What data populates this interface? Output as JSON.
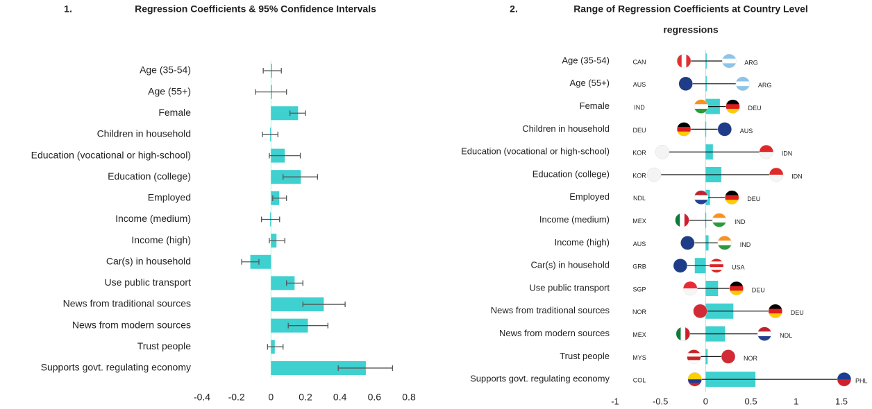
{
  "chart_data": [
    {
      "type": "bar",
      "number": "1.",
      "title": "Regression Coefficients & 95% Confidence Intervals",
      "color": "#3fd0d0",
      "error_color": "#555555",
      "categories": [
        "Age (35-54)",
        "Age (55+)",
        "Female",
        "Children in household",
        "Education (vocational or high-school)",
        "Education (college)",
        "Employed",
        "Income (medium)",
        "Income (high)",
        "Car(s) in household",
        "Use public transport",
        "News from traditional sources",
        "News from modern sources",
        "Trust people",
        "Supports govt. regulating economy"
      ],
      "values": [
        0.005,
        0.0,
        0.157,
        -0.005,
        0.08,
        0.173,
        0.048,
        -0.005,
        0.032,
        -0.12,
        0.137,
        0.306,
        0.214,
        0.022,
        0.55
      ],
      "ci_low": [
        -0.045,
        -0.09,
        0.11,
        -0.05,
        -0.01,
        0.07,
        0.01,
        -0.055,
        -0.01,
        -0.17,
        0.09,
        0.185,
        0.1,
        -0.02,
        0.39
      ],
      "ci_high": [
        0.06,
        0.09,
        0.2,
        0.04,
        0.17,
        0.27,
        0.09,
        0.05,
        0.08,
        -0.07,
        0.185,
        0.43,
        0.33,
        0.07,
        0.705
      ],
      "xlim": [
        -0.4,
        0.8
      ],
      "xticks": [
        -0.4,
        -0.2,
        0,
        0.2,
        0.4,
        0.6,
        0.8
      ]
    },
    {
      "type": "range",
      "number": "2.",
      "title_lines": [
        "Range of Regression Coefficients at Country Level",
        "regressions"
      ],
      "color": "#3fd0d0",
      "categories": [
        "Age (35-54)",
        "Age (55+)",
        "Female",
        "Children in household",
        "Education (vocational or high-school)",
        "Education (college)",
        "Employed",
        "Income (medium)",
        "Income (high)",
        "Car(s) in household",
        "Use public transport",
        "News from traditional sources",
        "News from modern sources",
        "Trust people",
        "Supports govt. regulating economy"
      ],
      "values": [
        0.005,
        0.0,
        0.157,
        -0.005,
        0.08,
        0.173,
        0.048,
        -0.005,
        0.032,
        -0.12,
        0.137,
        0.306,
        0.214,
        0.022,
        0.55
      ],
      "min_country": [
        "CAN",
        "AUS",
        "IND",
        "DEU",
        "KOR",
        "KOR",
        "NDL",
        "MEX",
        "AUS",
        "GRB",
        "SGP",
        "NOR",
        "MEX",
        "MYS",
        "COL"
      ],
      "min_values": [
        -0.24,
        -0.22,
        -0.05,
        -0.24,
        -0.48,
        -0.57,
        -0.05,
        -0.26,
        -0.2,
        -0.28,
        -0.17,
        -0.06,
        -0.25,
        -0.13,
        -0.12
      ],
      "max_country": [
        "ARG",
        "ARG",
        "DEU",
        "AUS",
        "IDN",
        "IDN",
        "DEU",
        "IND",
        "IND",
        "USA",
        "DEU",
        "DEU",
        "NDL",
        "NOR",
        "PHL"
      ],
      "max_values": [
        0.26,
        0.41,
        0.3,
        0.21,
        0.67,
        0.78,
        0.29,
        0.15,
        0.21,
        0.12,
        0.34,
        0.77,
        0.65,
        0.25,
        1.53
      ],
      "xlim": [
        -1,
        1.5
      ],
      "xticks": [
        -1,
        -0.5,
        0,
        0.5,
        1,
        1.5
      ]
    }
  ]
}
